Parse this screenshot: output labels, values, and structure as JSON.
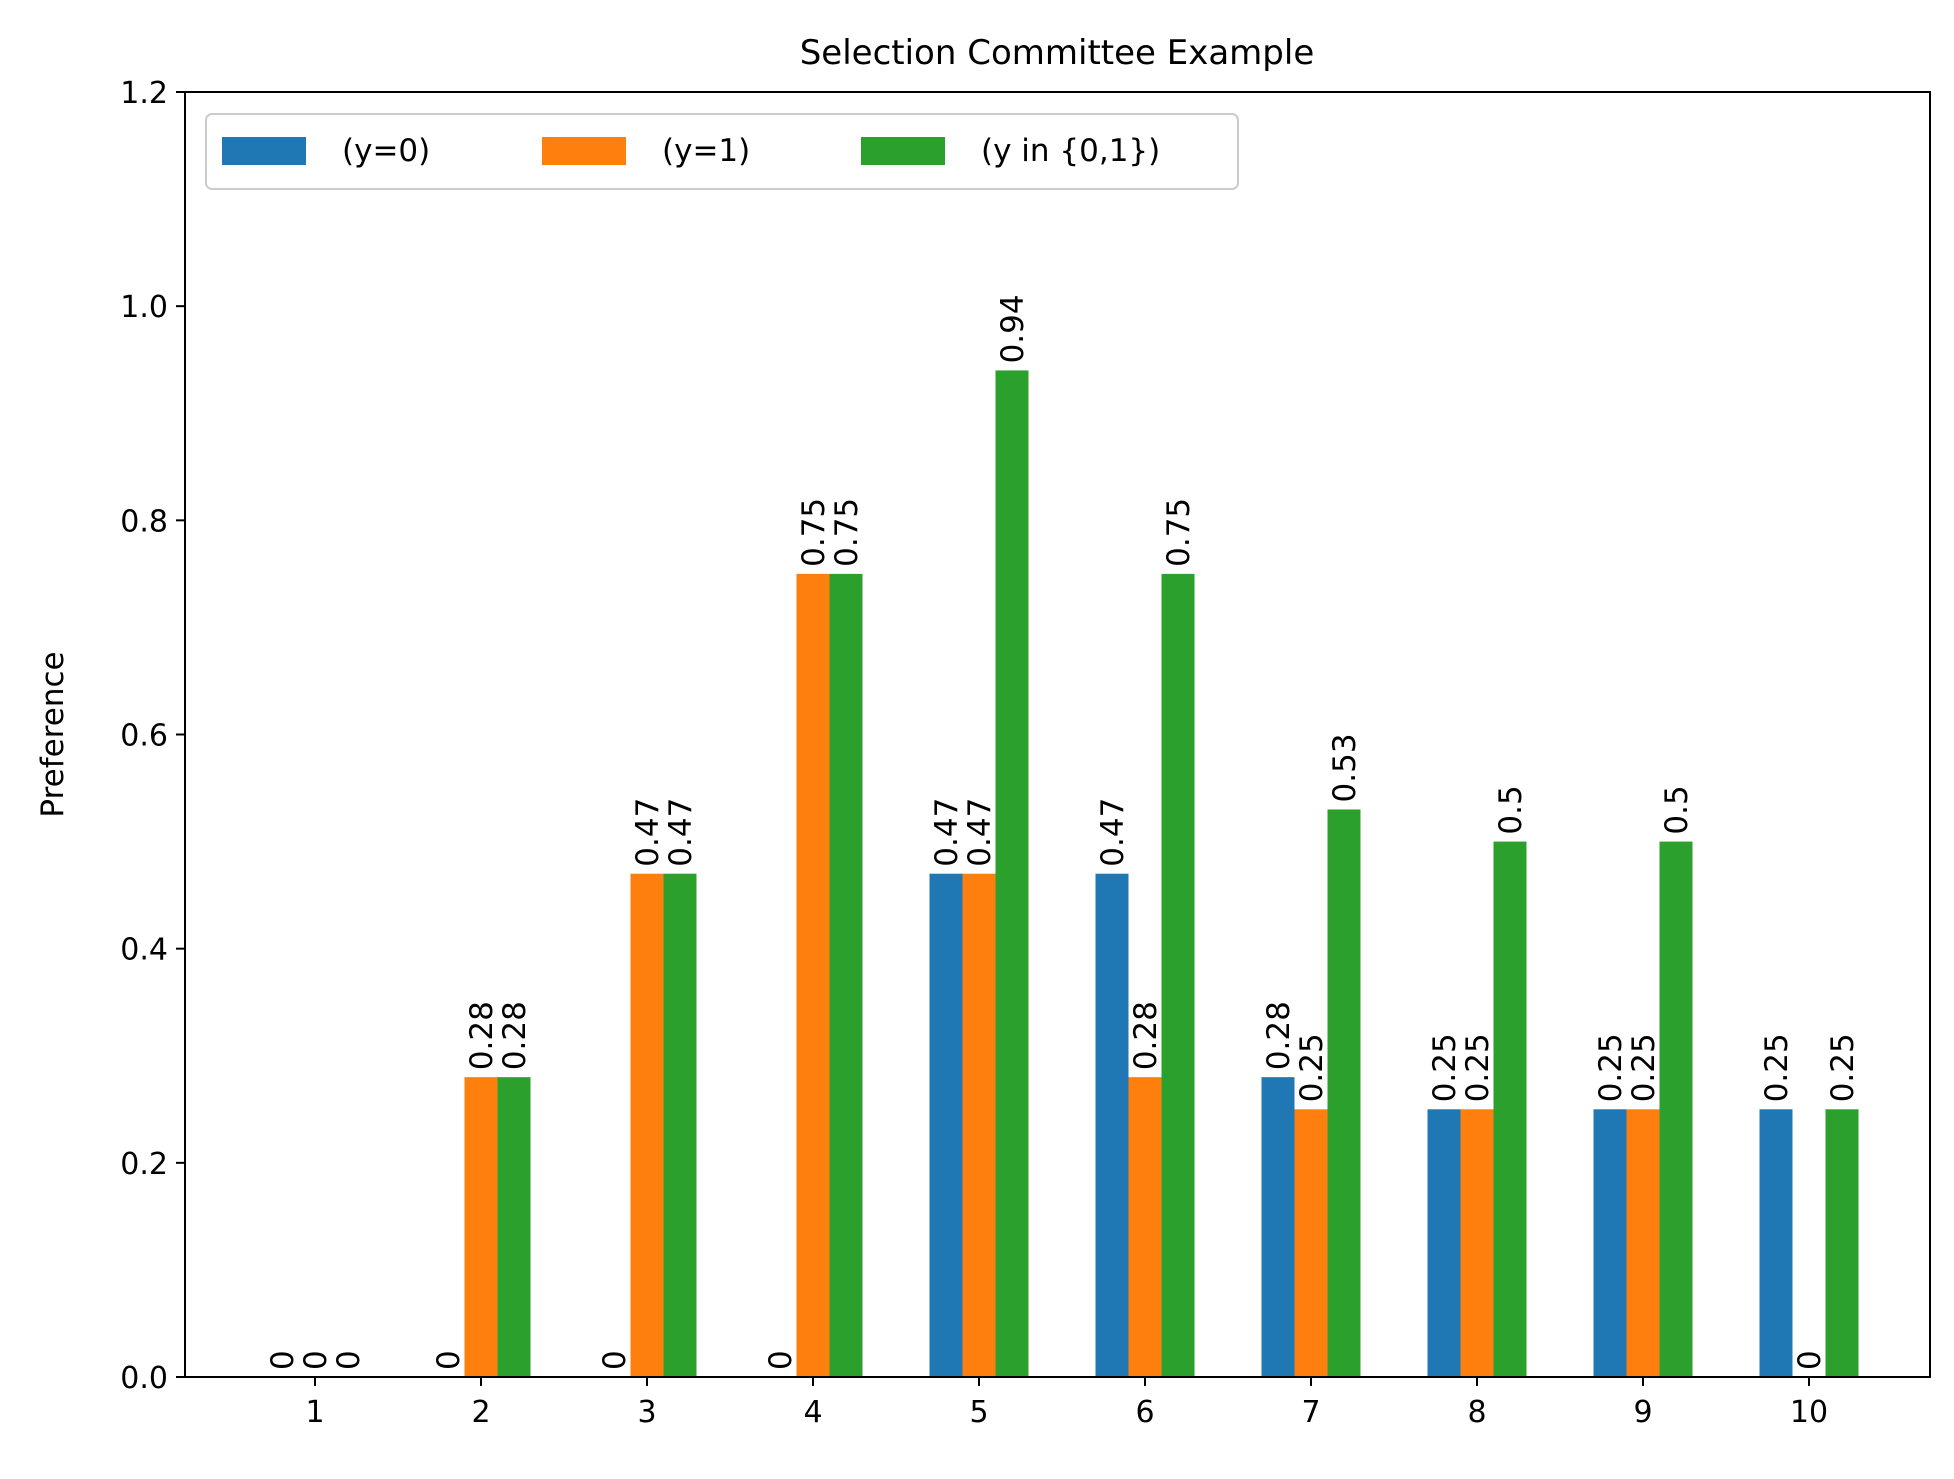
{
  "chart_data": {
    "type": "bar",
    "title": "Selection Committee Example",
    "xlabel": "",
    "ylabel": "Preference",
    "categories": [
      "1",
      "2",
      "3",
      "4",
      "5",
      "6",
      "7",
      "8",
      "9",
      "10"
    ],
    "ylim": [
      0,
      1.2
    ],
    "yticks": [
      "0.0",
      "0.2",
      "0.4",
      "0.6",
      "0.8",
      "1.0",
      "1.2"
    ],
    "grid": false,
    "legend_position": "top-left",
    "series": [
      {
        "name": "(y=0)",
        "color": "#1f77b4",
        "values": [
          0,
          0,
          0,
          0,
          0.47,
          0.47,
          0.28,
          0.25,
          0.25,
          0.25
        ],
        "labels": [
          "0",
          "0",
          "0",
          "0",
          "0.47",
          "0.47",
          "0.28",
          "0.25",
          "0.25",
          "0.25"
        ]
      },
      {
        "name": "(y=1)",
        "color": "#ff7f0e",
        "values": [
          0,
          0.28,
          0.47,
          0.75,
          0.47,
          0.28,
          0.25,
          0.25,
          0.25,
          0
        ],
        "labels": [
          "0",
          "0.28",
          "0.47",
          "0.75",
          "0.47",
          "0.28",
          "0.25",
          "0.25",
          "0.25",
          "0"
        ]
      },
      {
        "name": "(y in {0,1})",
        "color": "#2ca02c",
        "values": [
          0,
          0.28,
          0.47,
          0.75,
          0.94,
          0.75,
          0.53,
          0.5,
          0.5,
          0.25
        ],
        "labels": [
          "0",
          "0.28",
          "0.47",
          "0.75",
          "0.94",
          "0.75",
          "0.53",
          "0.5",
          "0.5",
          "0.25"
        ]
      }
    ]
  }
}
